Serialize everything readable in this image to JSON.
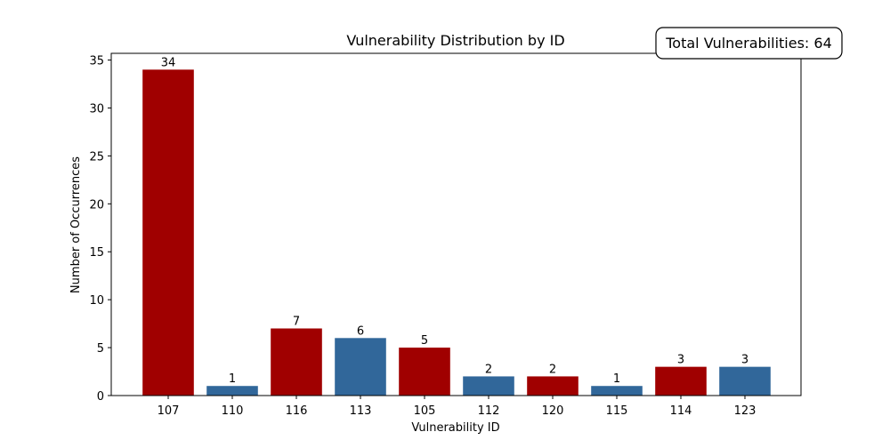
{
  "chart_data": {
    "type": "bar",
    "title": "Vulnerability Distribution by ID",
    "xlabel": "Vulnerability ID",
    "ylabel": "Number of Occurrences",
    "categories": [
      "107",
      "110",
      "116",
      "113",
      "105",
      "112",
      "120",
      "115",
      "114",
      "123"
    ],
    "values": [
      34,
      1,
      7,
      6,
      5,
      2,
      2,
      1,
      3,
      3
    ],
    "bar_colors": [
      "#a00000",
      "#31679a",
      "#a00000",
      "#31679a",
      "#a00000",
      "#31679a",
      "#a00000",
      "#31679a",
      "#a00000",
      "#31679a"
    ],
    "yticks": [
      0,
      5,
      10,
      15,
      20,
      25,
      30,
      35
    ],
    "ylim": [
      0,
      35.7
    ],
    "grid": false,
    "annotation": "Total Vulnerabilities: 64"
  }
}
